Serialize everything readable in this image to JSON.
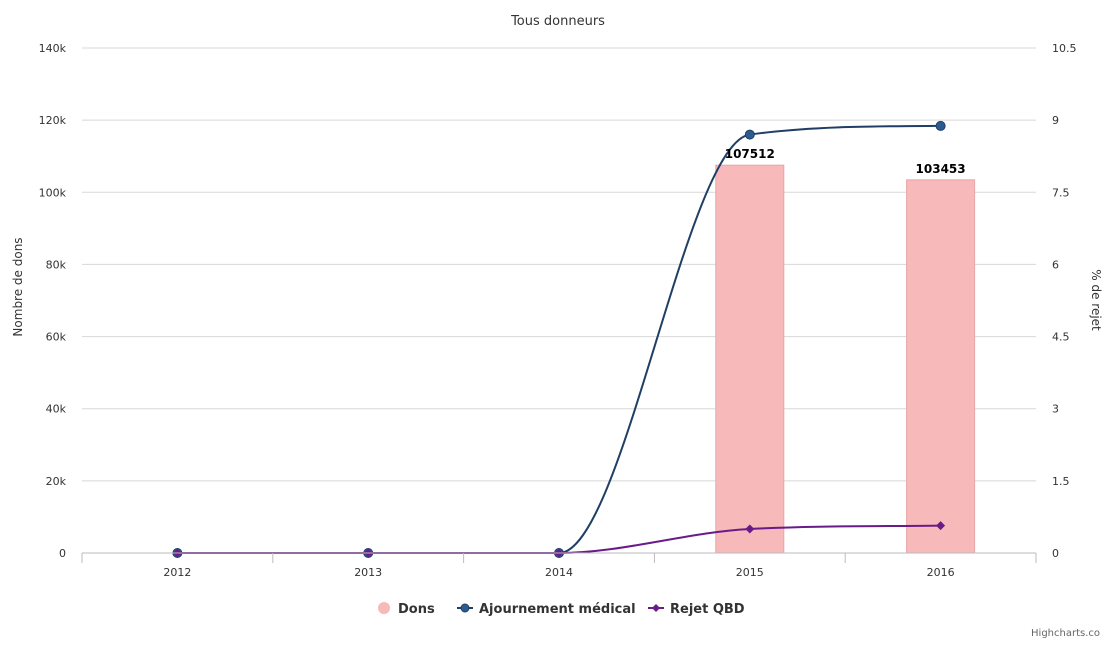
{
  "chart_data": {
    "type": "combo",
    "subtitle": "Tous donneurs",
    "categories": [
      "2012",
      "2013",
      "2014",
      "2015",
      "2016"
    ],
    "y_left": {
      "label": "Nombre de dons",
      "min": 0,
      "max": 140000,
      "ticks": [
        0,
        20000,
        40000,
        60000,
        80000,
        100000,
        120000,
        140000
      ],
      "tick_labels": [
        "0",
        "20k",
        "40k",
        "60k",
        "80k",
        "100k",
        "120k",
        "140k"
      ]
    },
    "y_right": {
      "label": "% de rejet",
      "min": 0,
      "max": 10.5,
      "ticks": [
        0,
        1.5,
        3,
        4.5,
        6,
        7.5,
        9,
        10.5
      ],
      "tick_labels": [
        "0",
        "1.5",
        "3",
        "4.5",
        "6",
        "7.5",
        "9",
        "10.5"
      ]
    },
    "series": [
      {
        "name": "Dons",
        "type": "bar",
        "axis": "left",
        "color": "#f7b9b9",
        "values": [
          null,
          null,
          null,
          107512,
          103453
        ],
        "data_labels": [
          "",
          "",
          "",
          "107512",
          "103453"
        ]
      },
      {
        "name": "Ajournement médical",
        "type": "line",
        "axis": "right",
        "color": "#1f3f66",
        "marker": "circle",
        "values": [
          0,
          0,
          0,
          8.7,
          8.88
        ]
      },
      {
        "name": "Rejet QBD",
        "type": "line",
        "axis": "right",
        "color": "#6a1b8a",
        "marker": "diamond",
        "values": [
          0,
          0,
          0,
          0.5,
          0.57
        ]
      }
    ],
    "legend": {
      "placement": "bottom-center",
      "items": [
        "Dons",
        "Ajournement médical",
        "Rejet QBD"
      ]
    },
    "grid": true,
    "credit": "Highcharts.co"
  }
}
